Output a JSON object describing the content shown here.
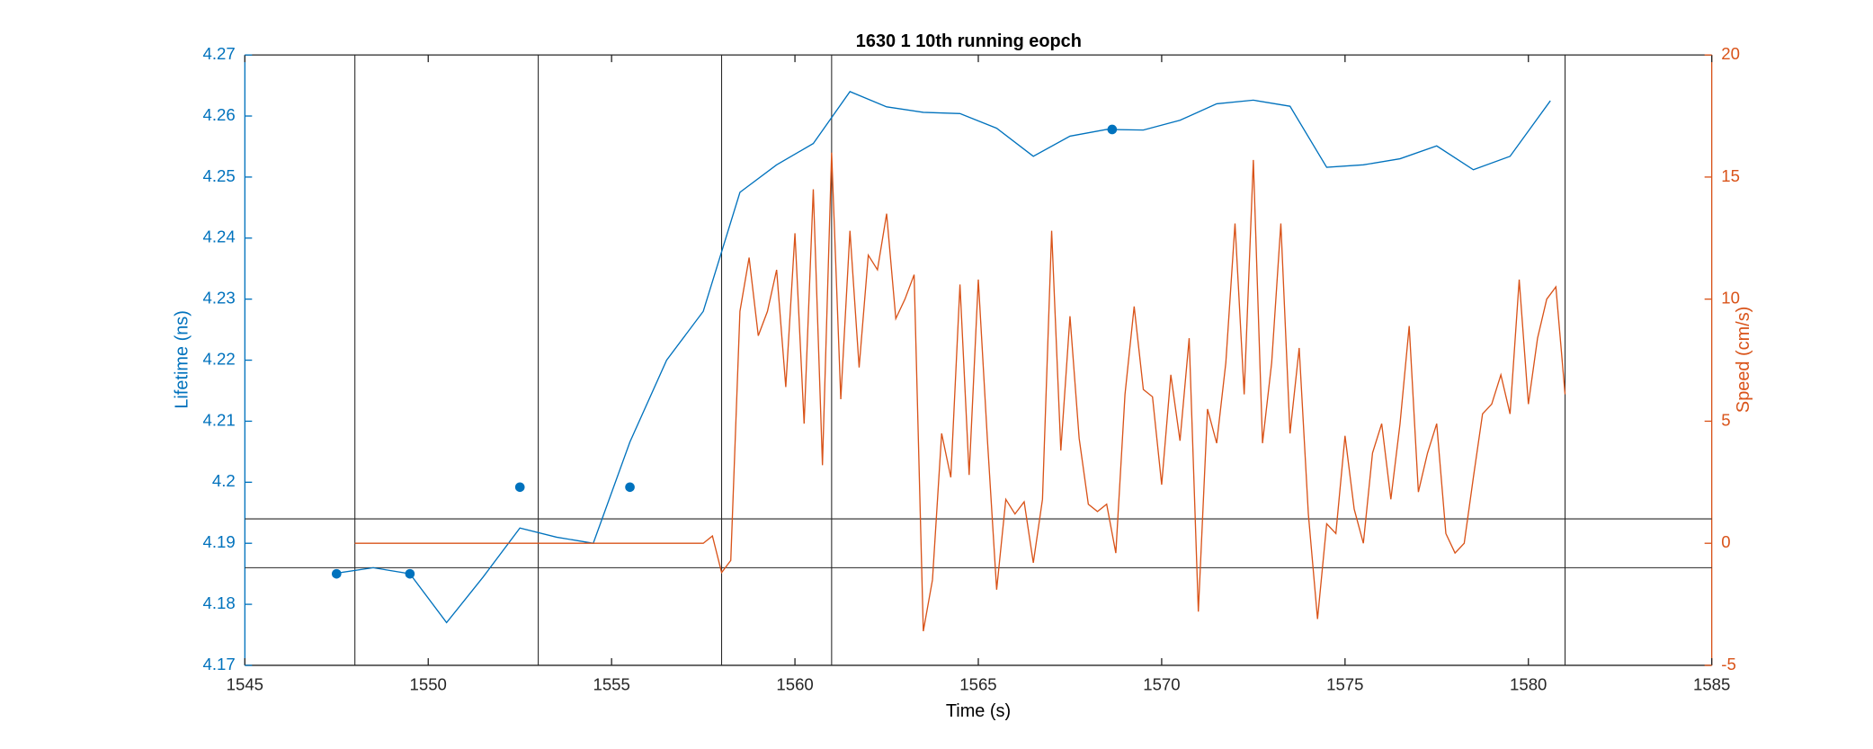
{
  "chart_data": {
    "type": "line",
    "title": "1630 1 10th running eopch",
    "xlabel": "Time (s)",
    "ylabel": "Lifetime (ns)",
    "y2label": "Speed (cm/s)",
    "xlim": [
      1545,
      1585
    ],
    "xticks": [
      1545,
      1550,
      1555,
      1560,
      1565,
      1570,
      1575,
      1580,
      1585
    ],
    "ylim": [
      4.17,
      4.27
    ],
    "yticks": [
      4.17,
      4.18,
      4.19,
      4.2,
      4.21,
      4.22,
      4.23,
      4.24,
      4.25,
      4.26,
      4.27
    ],
    "y2lim": [
      -5,
      20
    ],
    "y2ticks": [
      -5,
      0,
      5,
      10,
      15,
      20
    ],
    "grid": false,
    "y_color": "#0072bd",
    "y2_color": "#d95319",
    "vlines": [
      1548,
      1553,
      1558,
      1561,
      1581
    ],
    "hlines": [
      4.194,
      4.186
    ],
    "series": [
      {
        "style": "line",
        "color": "#0072bd",
        "x": [
          1547.5,
          1548.5,
          1549.5,
          1550.5,
          1551.5,
          1552.5,
          1553.5,
          1554.5,
          1555.5,
          1556.5,
          1557.5,
          1558.5,
          1559.5,
          1560.5,
          1561.5,
          1562.5,
          1563.5,
          1564.5,
          1565.5,
          1566.5,
          1567.5,
          1568.5,
          1569.5,
          1570.5,
          1571.5,
          1572.5,
          1573.5,
          1574.5,
          1575.5,
          1576.5,
          1577.5,
          1578.5,
          1579.5,
          1580.6
        ],
        "values": [
          4.1851,
          4.186,
          4.185,
          4.177,
          4.1845,
          4.1925,
          4.191,
          4.19,
          4.2066,
          4.22,
          4.228,
          4.2475,
          4.252,
          4.2555,
          4.264,
          4.2615,
          4.2606,
          4.2604,
          4.258,
          4.2534,
          4.2567,
          4.2578,
          4.2577,
          4.2593,
          4.262,
          4.2626,
          4.2616,
          4.2516,
          4.252,
          4.253,
          4.2551,
          4.2512,
          4.2534,
          4.2625
        ]
      },
      {
        "style": "markers",
        "color": "#0072bd",
        "x": [
          1547.5,
          1549.5,
          1552.5,
          1555.5,
          1568.65
        ],
        "values": [
          4.185,
          4.185,
          4.1992,
          4.1992,
          4.2578
        ]
      },
      {
        "style": "line",
        "color": "#d95319",
        "axis": "y2",
        "x": [
          1548,
          1557.5,
          1557.75,
          1558,
          1558.25,
          1558.5,
          1558.75,
          1559,
          1559.25,
          1559.5,
          1559.75,
          1560,
          1560.25,
          1560.5,
          1560.75,
          1561,
          1561.25,
          1561.5,
          1561.75,
          1562,
          1562.25,
          1562.5,
          1562.75,
          1563,
          1563.25,
          1563.5,
          1563.75,
          1564,
          1564.25,
          1564.5,
          1564.75,
          1565,
          1565.25,
          1565.5,
          1565.75,
          1566,
          1566.25,
          1566.5,
          1566.75,
          1567,
          1567.25,
          1567.5,
          1567.75,
          1568,
          1568.25,
          1568.5,
          1568.75,
          1569,
          1569.25,
          1569.5,
          1569.75,
          1570,
          1570.25,
          1570.5,
          1570.75,
          1571,
          1571.25,
          1571.5,
          1571.75,
          1572,
          1572.25,
          1572.5,
          1572.75,
          1573,
          1573.25,
          1573.5,
          1573.75,
          1574,
          1574.25,
          1574.5,
          1574.75,
          1575,
          1575.25,
          1575.5,
          1575.75,
          1576,
          1576.25,
          1576.5,
          1576.75,
          1577,
          1577.25,
          1577.5,
          1577.75,
          1578,
          1578.25,
          1578.5,
          1578.75,
          1579,
          1579.25,
          1579.5,
          1579.75,
          1580,
          1580.25,
          1580.5,
          1580.75,
          1581
        ],
        "values": [
          0,
          0,
          0.3,
          -1.2,
          -0.7,
          9.5,
          11.7,
          8.5,
          9.5,
          11.2,
          6.4,
          12.7,
          4.9,
          14.5,
          3.2,
          16,
          5.9,
          12.8,
          7.2,
          11.8,
          11.2,
          13.5,
          9.2,
          10,
          11,
          -3.6,
          -1.5,
          4.5,
          2.7,
          10.6,
          2.8,
          10.8,
          4.2,
          -1.9,
          1.8,
          1.2,
          1.7,
          -0.8,
          1.8,
          12.8,
          3.8,
          9.3,
          4.3,
          1.6,
          1.3,
          1.6,
          -0.4,
          6.1,
          9.7,
          6.3,
          6,
          2.4,
          6.9,
          4.2,
          8.4,
          -2.8,
          5.5,
          4.1,
          7.4,
          13.1,
          6.1,
          15.7,
          4.1,
          7.4,
          13.1,
          4.5,
          8,
          1.2,
          -3.1,
          0.8,
          0.4,
          4.4,
          1.4,
          0,
          3.7,
          4.9,
          1.8,
          4.9,
          8.9,
          2.1,
          3.7,
          4.9,
          0.4,
          -0.4,
          0,
          2.7,
          5.3,
          5.7,
          6.9,
          5.3,
          10.8,
          5.7,
          8.4,
          10,
          10.5,
          6.1
        ]
      }
    ]
  }
}
